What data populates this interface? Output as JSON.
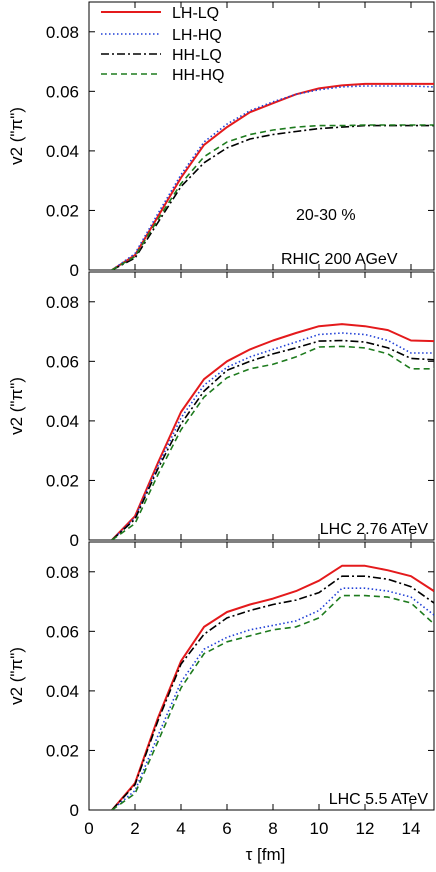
{
  "chart_data": [
    {
      "type": "line",
      "panel": "top",
      "ylabel": "v2 (\"π\")",
      "xlim": [
        0,
        15
      ],
      "ylim": [
        0,
        0.09
      ],
      "x_ticks": [
        0,
        2,
        4,
        6,
        8,
        10,
        12,
        14
      ],
      "y_ticks": [
        0,
        0.02,
        0.04,
        0.06,
        0.08
      ],
      "y_tick_labels": [
        "0",
        "0.02",
        "0.04",
        "0.06",
        "0.08"
      ],
      "annotations": [
        "20-30 %",
        "RHIC 200 AGeV"
      ],
      "legend": {
        "position": "top-left",
        "entries": [
          "LH-LQ",
          "LH-HQ",
          "HH-LQ",
          "HH-HQ"
        ]
      },
      "series": [
        {
          "name": "LH-LQ",
          "color": "#e41a1c",
          "style": "solid",
          "points": [
            [
              1,
              0
            ],
            [
              2,
              0.005
            ],
            [
              3,
              0.018
            ],
            [
              4,
              0.031
            ],
            [
              5,
              0.042
            ],
            [
              6,
              0.048
            ],
            [
              7,
              0.053
            ],
            [
              8,
              0.056
            ],
            [
              9,
              0.059
            ],
            [
              10,
              0.061
            ],
            [
              11,
              0.062
            ],
            [
              12,
              0.0625
            ],
            [
              13,
              0.0625
            ],
            [
              14,
              0.0625
            ],
            [
              15,
              0.0625
            ]
          ]
        },
        {
          "name": "LH-HQ",
          "color": "#1f3fd6",
          "style": "dotted",
          "points": [
            [
              1,
              0
            ],
            [
              2,
              0.0055
            ],
            [
              3,
              0.019
            ],
            [
              4,
              0.032
            ],
            [
              5,
              0.043
            ],
            [
              6,
              0.049
            ],
            [
              7,
              0.0535
            ],
            [
              8,
              0.0565
            ],
            [
              9,
              0.059
            ],
            [
              10,
              0.0605
            ],
            [
              11,
              0.0615
            ],
            [
              12,
              0.0618
            ],
            [
              13,
              0.0618
            ],
            [
              14,
              0.0618
            ],
            [
              15,
              0.0615
            ]
          ]
        },
        {
          "name": "HH-LQ",
          "color": "#000000",
          "style": "dashdot",
          "points": [
            [
              1,
              0
            ],
            [
              2,
              0.004
            ],
            [
              3,
              0.016
            ],
            [
              4,
              0.028
            ],
            [
              5,
              0.036
            ],
            [
              6,
              0.041
            ],
            [
              7,
              0.044
            ],
            [
              8,
              0.0455
            ],
            [
              9,
              0.0465
            ],
            [
              10,
              0.0475
            ],
            [
              11,
              0.048
            ],
            [
              12,
              0.0485
            ],
            [
              13,
              0.0485
            ],
            [
              14,
              0.0485
            ],
            [
              15,
              0.0485
            ]
          ]
        },
        {
          "name": "HH-HQ",
          "color": "#1e7b1e",
          "style": "dashed",
          "points": [
            [
              1,
              0
            ],
            [
              2,
              0.0045
            ],
            [
              3,
              0.017
            ],
            [
              4,
              0.029
            ],
            [
              5,
              0.038
            ],
            [
              6,
              0.043
            ],
            [
              7,
              0.0455
            ],
            [
              8,
              0.047
            ],
            [
              9,
              0.048
            ],
            [
              10,
              0.0485
            ],
            [
              11,
              0.0485
            ],
            [
              12,
              0.0487
            ],
            [
              13,
              0.0487
            ],
            [
              14,
              0.0487
            ],
            [
              15,
              0.0487
            ]
          ]
        }
      ]
    },
    {
      "type": "line",
      "panel": "middle",
      "ylabel": "v2 (\"π\")",
      "xlim": [
        0,
        15
      ],
      "ylim": [
        0,
        0.09
      ],
      "x_ticks": [
        0,
        2,
        4,
        6,
        8,
        10,
        12,
        14
      ],
      "y_ticks": [
        0,
        0.02,
        0.04,
        0.06,
        0.08
      ],
      "y_tick_labels": [
        "0",
        "0.02",
        "0.04",
        "0.06",
        "0.08"
      ],
      "annotations": [
        "LHC 2.76 ATeV"
      ],
      "series": [
        {
          "name": "LH-LQ",
          "color": "#e41a1c",
          "style": "solid",
          "points": [
            [
              1,
              0
            ],
            [
              2,
              0.008
            ],
            [
              3,
              0.026
            ],
            [
              4,
              0.043
            ],
            [
              5,
              0.054
            ],
            [
              6,
              0.06
            ],
            [
              7,
              0.064
            ],
            [
              8,
              0.067
            ],
            [
              9,
              0.0695
            ],
            [
              10,
              0.0718
            ],
            [
              11,
              0.0725
            ],
            [
              12,
              0.0718
            ],
            [
              13,
              0.0705
            ],
            [
              14,
              0.067
            ],
            [
              15,
              0.0668
            ]
          ]
        },
        {
          "name": "LH-HQ",
          "color": "#1f3fd6",
          "style": "dotted",
          "points": [
            [
              1,
              0
            ],
            [
              2,
              0.0075
            ],
            [
              3,
              0.025
            ],
            [
              4,
              0.041
            ],
            [
              5,
              0.052
            ],
            [
              6,
              0.058
            ],
            [
              7,
              0.0615
            ],
            [
              8,
              0.064
            ],
            [
              9,
              0.0665
            ],
            [
              10,
              0.069
            ],
            [
              11,
              0.0695
            ],
            [
              12,
              0.069
            ],
            [
              13,
              0.067
            ],
            [
              14,
              0.0628
            ],
            [
              15,
              0.0628
            ]
          ]
        },
        {
          "name": "HH-LQ",
          "color": "#000000",
          "style": "dashdot",
          "points": [
            [
              1,
              0
            ],
            [
              2,
              0.007
            ],
            [
              3,
              0.024
            ],
            [
              4,
              0.039
            ],
            [
              5,
              0.05
            ],
            [
              6,
              0.057
            ],
            [
              7,
              0.06
            ],
            [
              8,
              0.0625
            ],
            [
              9,
              0.0645
            ],
            [
              10,
              0.0668
            ],
            [
              11,
              0.067
            ],
            [
              12,
              0.0665
            ],
            [
              13,
              0.0645
            ],
            [
              14,
              0.061
            ],
            [
              15,
              0.0605
            ]
          ]
        },
        {
          "name": "HH-HQ",
          "color": "#1e7b1e",
          "style": "dashed",
          "points": [
            [
              1,
              0
            ],
            [
              2,
              0.0055
            ],
            [
              3,
              0.022
            ],
            [
              4,
              0.037
            ],
            [
              5,
              0.048
            ],
            [
              6,
              0.0545
            ],
            [
              7,
              0.0575
            ],
            [
              8,
              0.059
            ],
            [
              9,
              0.0615
            ],
            [
              10,
              0.0648
            ],
            [
              11,
              0.065
            ],
            [
              12,
              0.0645
            ],
            [
              13,
              0.0625
            ],
            [
              14,
              0.0575
            ],
            [
              15,
              0.0575
            ]
          ]
        }
      ]
    },
    {
      "type": "line",
      "panel": "bottom",
      "ylabel": "v2 (\"π\")",
      "xlabel": "τ [fm]",
      "xlim": [
        0,
        15
      ],
      "ylim": [
        0,
        0.09
      ],
      "x_ticks": [
        0,
        2,
        4,
        6,
        8,
        10,
        12,
        14
      ],
      "x_tick_labels": [
        "0",
        "2",
        "4",
        "6",
        "8",
        "10",
        "12",
        "14"
      ],
      "y_ticks": [
        0,
        0.02,
        0.04,
        0.06,
        0.08
      ],
      "y_tick_labels": [
        "0",
        "0.02",
        "0.04",
        "0.06",
        "0.08"
      ],
      "annotations": [
        "LHC 5.5 ATeV"
      ],
      "series": [
        {
          "name": "LH-LQ",
          "color": "#e41a1c",
          "style": "solid",
          "points": [
            [
              1,
              0
            ],
            [
              2,
              0.009
            ],
            [
              3,
              0.031
            ],
            [
              4,
              0.05
            ],
            [
              5,
              0.0615
            ],
            [
              6,
              0.0665
            ],
            [
              7,
              0.069
            ],
            [
              8,
              0.071
            ],
            [
              9,
              0.0735
            ],
            [
              10,
              0.077
            ],
            [
              11,
              0.082
            ],
            [
              12,
              0.082
            ],
            [
              13,
              0.0805
            ],
            [
              14,
              0.0785
            ],
            [
              15,
              0.0735
            ]
          ]
        },
        {
          "name": "LH-HQ",
          "color": "#1f3fd6",
          "style": "dotted",
          "points": [
            [
              1,
              0
            ],
            [
              2,
              0.0065
            ],
            [
              3,
              0.025
            ],
            [
              4,
              0.043
            ],
            [
              5,
              0.054
            ],
            [
              6,
              0.058
            ],
            [
              7,
              0.0605
            ],
            [
              8,
              0.062
            ],
            [
              9,
              0.0635
            ],
            [
              10,
              0.067
            ],
            [
              11,
              0.0745
            ],
            [
              12,
              0.0745
            ],
            [
              13,
              0.0735
            ],
            [
              14,
              0.0715
            ],
            [
              15,
              0.0655
            ]
          ]
        },
        {
          "name": "HH-LQ",
          "color": "#000000",
          "style": "dashdot",
          "points": [
            [
              1,
              0
            ],
            [
              2,
              0.0085
            ],
            [
              3,
              0.03
            ],
            [
              4,
              0.049
            ],
            [
              5,
              0.059
            ],
            [
              6,
              0.0645
            ],
            [
              7,
              0.067
            ],
            [
              8,
              0.069
            ],
            [
              9,
              0.0705
            ],
            [
              10,
              0.073
            ],
            [
              11,
              0.0785
            ],
            [
              12,
              0.0785
            ],
            [
              13,
              0.0775
            ],
            [
              14,
              0.075
            ],
            [
              15,
              0.0695
            ]
          ]
        },
        {
          "name": "HH-HQ",
          "color": "#1e7b1e",
          "style": "dashed",
          "points": [
            [
              1,
              0
            ],
            [
              2,
              0.0055
            ],
            [
              3,
              0.023
            ],
            [
              4,
              0.041
            ],
            [
              5,
              0.0525
            ],
            [
              6,
              0.0565
            ],
            [
              7,
              0.0585
            ],
            [
              8,
              0.0605
            ],
            [
              9,
              0.0615
            ],
            [
              10,
              0.0645
            ],
            [
              11,
              0.072
            ],
            [
              12,
              0.072
            ],
            [
              13,
              0.0715
            ],
            [
              14,
              0.0695
            ],
            [
              15,
              0.0625
            ]
          ]
        }
      ]
    }
  ]
}
